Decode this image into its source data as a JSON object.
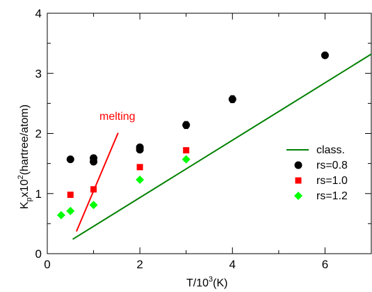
{
  "chart_data": {
    "type": "scatter",
    "xlim": [
      0,
      7
    ],
    "ylim": [
      0,
      4
    ],
    "x_ticks": [
      0,
      2,
      4,
      6
    ],
    "y_ticks": [
      0,
      1,
      2,
      3,
      4
    ],
    "x_tick_labels": [
      "0",
      "2",
      "4",
      "6"
    ],
    "y_tick_labels": [
      "0",
      "1",
      "2",
      "3",
      "4"
    ],
    "xlabel": {
      "base": "T/10",
      "sup": "3",
      "tail": "(K)"
    },
    "ylabel": {
      "k": "K",
      "sub": "p",
      "x": "x10",
      "sup": "2",
      "tail": "(hartree/atom)"
    },
    "grid": false,
    "legend_position": "right",
    "series": [
      {
        "name": "class.",
        "kind": "line",
        "color": "#008000",
        "points": [
          [
            0.55,
            0.24
          ],
          [
            7.0,
            3.32
          ]
        ]
      },
      {
        "name": "rs=0.8",
        "kind": "marker",
        "marker": "circle",
        "color": "#000000",
        "points": [
          {
            "x": 0.5,
            "y": 1.57,
            "err": 0.02
          },
          {
            "x": 1.0,
            "y": 1.59,
            "err": 0.02
          },
          {
            "x": 1.0,
            "y": 1.53,
            "err": 0.02
          },
          {
            "x": 2.0,
            "y": 1.77,
            "err": 0.03
          },
          {
            "x": 2.0,
            "y": 1.73,
            "err": 0.03
          },
          {
            "x": 3.0,
            "y": 2.14,
            "err": 0.06
          },
          {
            "x": 4.0,
            "y": 2.57,
            "err": 0.06
          },
          {
            "x": 6.0,
            "y": 3.3,
            "err": 0.02
          }
        ]
      },
      {
        "name": "rs=1.0",
        "kind": "marker",
        "marker": "square",
        "color": "#ff0000",
        "points": [
          {
            "x": 0.5,
            "y": 0.98
          },
          {
            "x": 1.0,
            "y": 1.07
          },
          {
            "x": 2.0,
            "y": 1.44
          },
          {
            "x": 3.0,
            "y": 1.72
          }
        ]
      },
      {
        "name": "rs=1.2",
        "kind": "marker",
        "marker": "diamond",
        "color": "#00ff00",
        "points": [
          {
            "x": 0.3,
            "y": 0.64
          },
          {
            "x": 0.5,
            "y": 0.71
          },
          {
            "x": 1.0,
            "y": 0.81
          },
          {
            "x": 2.0,
            "y": 1.23
          },
          {
            "x": 3.0,
            "y": 1.57
          }
        ]
      }
    ],
    "annotations": [
      {
        "text": "melting",
        "color": "#ff0000",
        "line": [
          [
            0.63,
            0.37
          ],
          [
            1.53,
            2.01
          ]
        ]
      }
    ]
  }
}
